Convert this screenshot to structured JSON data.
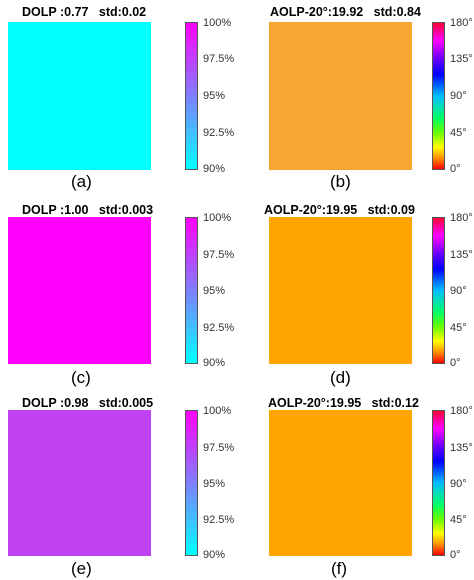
{
  "colors": {
    "cyan": "#00ffff",
    "magenta": "#ff00ff",
    "dolp_e": "#c142f0",
    "aolp": "#ffa500",
    "aolp_b": "#f7a634"
  },
  "panels": [
    {
      "id": "a",
      "title": "DOLP :0.77   std:0.02",
      "caption": "(a)",
      "fill_key": "cyan",
      "colorbar": "dolp",
      "ticks": [
        "100%",
        "97.5%",
        "95%",
        "92.5%",
        "90%"
      ]
    },
    {
      "id": "b",
      "title": "AOLP-20°:19.92   std:0.84",
      "caption": "(b)",
      "fill_key": "aolp_b",
      "colorbar": "aolp",
      "ticks": [
        "180°",
        "135°",
        "90°",
        "45°",
        "0°"
      ]
    },
    {
      "id": "c",
      "title": "DOLP :1.00   std:0.003",
      "caption": "(c)",
      "fill_key": "magenta",
      "colorbar": "dolp",
      "ticks": [
        "100%",
        "97.5%",
        "95%",
        "92.5%",
        "90%"
      ]
    },
    {
      "id": "d",
      "title": "AOLP-20°:19.95   std:0.09",
      "caption": "(d)",
      "fill_key": "aolp",
      "colorbar": "aolp",
      "ticks": [
        "180°",
        "135°",
        "90°",
        "45°",
        "0°"
      ]
    },
    {
      "id": "e",
      "title": "DOLP :0.98   std:0.005",
      "caption": "(e)",
      "fill_key": "dolp_e",
      "colorbar": "dolp",
      "ticks": [
        "100%",
        "97.5%",
        "95%",
        "92.5%",
        "90%"
      ]
    },
    {
      "id": "f",
      "title": "AOLP-20°:19.95   std:0.12",
      "caption": "(f)",
      "fill_key": "aolp",
      "colorbar": "aolp",
      "ticks": [
        "180°",
        "135°",
        "90°",
        "45°",
        "0°"
      ]
    }
  ]
}
